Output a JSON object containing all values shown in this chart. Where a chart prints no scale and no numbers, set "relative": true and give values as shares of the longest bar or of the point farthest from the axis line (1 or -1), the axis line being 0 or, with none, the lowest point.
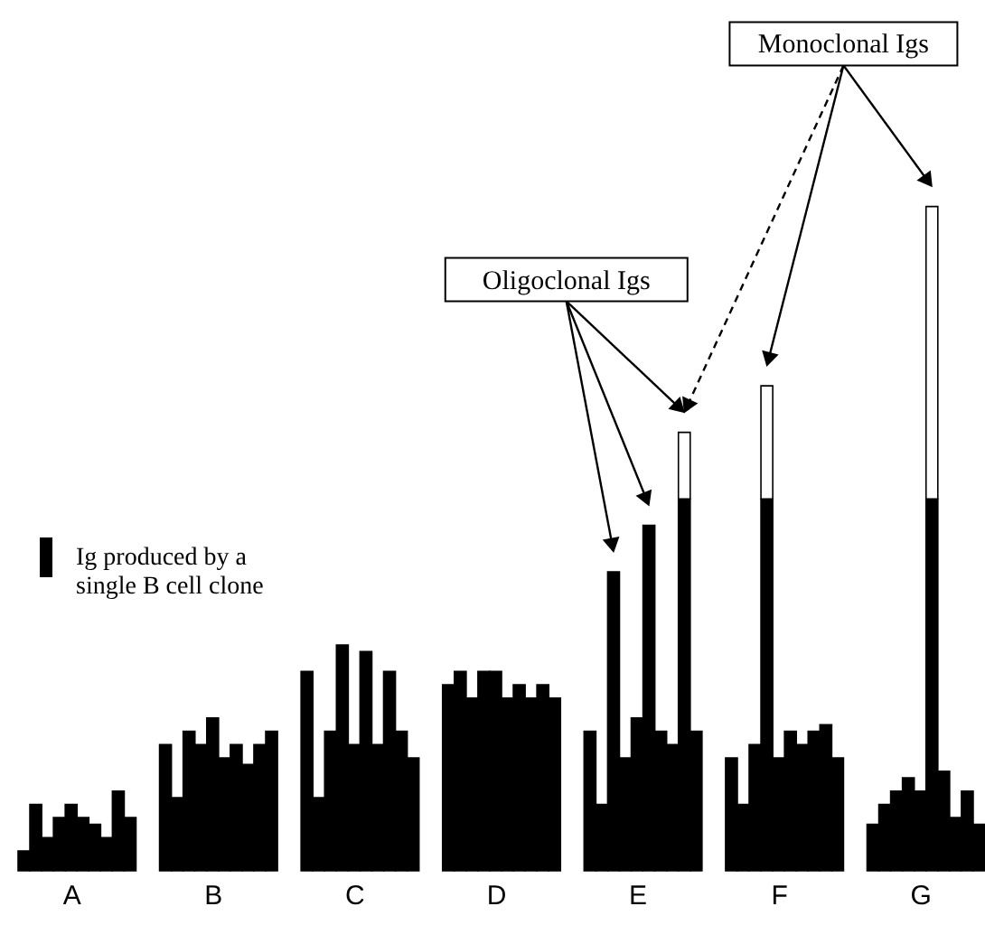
{
  "chart_data": {
    "type": "bar",
    "relative": true,
    "stacked": true,
    "grid": false,
    "legend": "left",
    "categories": [
      null,
      null,
      null,
      null,
      "A",
      null,
      null,
      null,
      null,
      null,
      null,
      null,
      null,
      null,
      null,
      null,
      "B",
      null,
      null,
      null,
      null,
      null,
      null,
      null,
      null,
      null,
      null,
      null,
      "C",
      null,
      null,
      null,
      null,
      null,
      null,
      null,
      null,
      null,
      null,
      null,
      "D",
      null,
      null,
      null,
      null,
      null,
      null,
      null,
      null,
      null,
      null,
      null,
      "E",
      null,
      null,
      null,
      null,
      null,
      null,
      null,
      null,
      null,
      null,
      null,
      "F",
      null,
      null,
      null,
      null,
      null,
      null,
      null,
      null,
      null,
      null,
      null,
      "G",
      null,
      null,
      null,
      null,
      null
    ],
    "series": [
      {
        "name": "Ig produced by a single B cell clone",
        "color": "#000000",
        "values": [
          0.03,
          0.1,
          0.05,
          0.08,
          0.1,
          0.08,
          0.07,
          0.05,
          0.12,
          0.08,
          null,
          null,
          0.19,
          0.11,
          0.21,
          0.19,
          0.23,
          0.17,
          0.19,
          0.16,
          0.19,
          0.21,
          null,
          null,
          0.3,
          0.11,
          0.21,
          0.34,
          0.19,
          0.33,
          0.19,
          0.3,
          0.21,
          0.17,
          null,
          null,
          0.28,
          0.3,
          0.26,
          0.3,
          0.3,
          0.26,
          0.28,
          0.26,
          0.28,
          0.26,
          null,
          null,
          0.21,
          0.1,
          0.45,
          0.17,
          0.23,
          0.52,
          0.21,
          0.19,
          0.56,
          0.21,
          null,
          null,
          0.17,
          0.1,
          0.19,
          0.56,
          0.17,
          0.21,
          0.19,
          0.21,
          0.22,
          0.17,
          null,
          null,
          0.07,
          0.1,
          0.12,
          0.14,
          0.12,
          0.56,
          0.15,
          0.08,
          0.12,
          0.07
        ]
      },
      {
        "color": "#ffffff",
        "values": [
          null,
          null,
          null,
          null,
          null,
          null,
          null,
          null,
          null,
          null,
          null,
          null,
          null,
          null,
          null,
          null,
          null,
          null,
          null,
          null,
          null,
          null,
          null,
          null,
          null,
          null,
          null,
          null,
          null,
          null,
          null,
          null,
          null,
          null,
          null,
          null,
          null,
          null,
          null,
          null,
          null,
          null,
          null,
          null,
          null,
          null,
          null,
          null,
          null,
          null,
          null,
          null,
          null,
          null,
          null,
          null,
          0.1,
          null,
          null,
          null,
          null,
          null,
          null,
          0.17,
          null,
          null,
          null,
          null,
          null,
          null,
          null,
          null,
          null,
          null,
          null,
          null,
          null,
          0.44,
          null,
          null,
          null,
          null
        ]
      }
    ],
    "annotations": [
      "Oligoclonal Igs",
      "Monoclonal Igs"
    ]
  }
}
